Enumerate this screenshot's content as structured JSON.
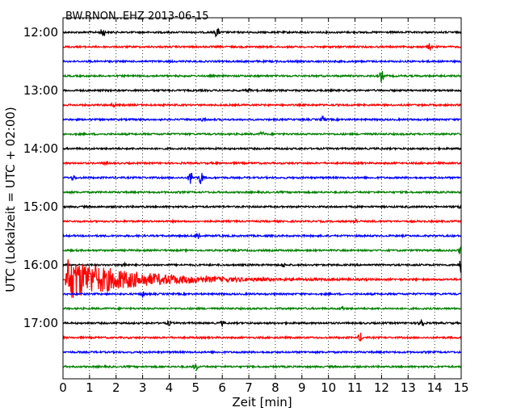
{
  "chart_data": {
    "type": "line",
    "title": "BW.RNON..EHZ 2013-06-15",
    "xlabel": "Zeit  [min]",
    "ylabel": "UTC (Lokalzeit = UTC + 02:00)",
    "xlim": [
      0,
      15
    ],
    "x_ticks": [
      "0",
      "1",
      "2",
      "3",
      "4",
      "5",
      "6",
      "7",
      "8",
      "9",
      "10",
      "11",
      "12",
      "13",
      "14",
      "15"
    ],
    "y_ticks": [
      "12:00",
      "13:00",
      "14:00",
      "15:00",
      "16:00",
      "17:00"
    ],
    "grid": "vertical dotted",
    "trace_interval_minutes": 15,
    "color_cycle": [
      "#000000",
      "#ff0000",
      "#0000ff",
      "#008000"
    ],
    "rows": [
      {
        "start": "12:00",
        "color": "#000000",
        "events": [
          {
            "t": 1.5,
            "amp": 0.7
          },
          {
            "t": 5.8,
            "amp": 0.7
          }
        ]
      },
      {
        "start": "12:15",
        "color": "#ff0000",
        "events": [
          {
            "t": 13.8,
            "amp": 0.4
          }
        ]
      },
      {
        "start": "12:30",
        "color": "#0000ff",
        "events": []
      },
      {
        "start": "12:45",
        "color": "#008000",
        "events": [
          {
            "t": 12.0,
            "amp": 0.8
          }
        ]
      },
      {
        "start": "13:00",
        "color": "#000000",
        "events": [
          {
            "t": 7.0,
            "amp": 0.2
          }
        ]
      },
      {
        "start": "13:15",
        "color": "#ff0000",
        "events": [
          {
            "t": 1.9,
            "amp": 0.3
          }
        ]
      },
      {
        "start": "13:30",
        "color": "#0000ff",
        "events": [
          {
            "t": 5.3,
            "amp": 0.3
          },
          {
            "t": 9.8,
            "amp": 0.4
          }
        ]
      },
      {
        "start": "13:45",
        "color": "#008000",
        "events": [
          {
            "t": 7.5,
            "amp": 0.3
          }
        ]
      },
      {
        "start": "14:00",
        "color": "#000000",
        "events": []
      },
      {
        "start": "14:15",
        "color": "#ff0000",
        "events": [
          {
            "t": 1.6,
            "amp": 0.3
          }
        ]
      },
      {
        "start": "14:30",
        "color": "#0000ff",
        "events": [
          {
            "t": 0.4,
            "amp": 0.3
          },
          {
            "t": 4.8,
            "amp": 1.0
          },
          {
            "t": 5.2,
            "amp": 1.0
          }
        ]
      },
      {
        "start": "14:45",
        "color": "#008000",
        "events": []
      },
      {
        "start": "15:00",
        "color": "#000000",
        "events": [
          {
            "t": 15.0,
            "amp": 0.8
          }
        ]
      },
      {
        "start": "15:15",
        "color": "#ff0000",
        "events": [
          {
            "t": 11.0,
            "amp": 0.4
          }
        ]
      },
      {
        "start": "15:30",
        "color": "#0000ff",
        "events": [
          {
            "t": 5.1,
            "amp": 0.5
          }
        ]
      },
      {
        "start": "15:45",
        "color": "#008000",
        "events": [
          {
            "t": 15.0,
            "amp": 0.8
          }
        ]
      },
      {
        "start": "16:00",
        "color": "#000000",
        "events": [
          {
            "t": 2.3,
            "amp": 0.3
          },
          {
            "t": 8.3,
            "amp": 0.3
          },
          {
            "t": 15.0,
            "amp": 1.0
          }
        ]
      },
      {
        "start": "16:15",
        "color": "#ff0000",
        "events": [
          {
            "t": 0.1,
            "amp": 3.0,
            "coda": 7.0
          }
        ]
      },
      {
        "start": "16:30",
        "color": "#0000ff",
        "events": [
          {
            "t": 3.0,
            "amp": 0.4
          }
        ]
      },
      {
        "start": "16:45",
        "color": "#008000",
        "events": [
          {
            "t": 10.5,
            "amp": 0.3
          }
        ]
      },
      {
        "start": "17:00",
        "color": "#000000",
        "events": [
          {
            "t": 4.0,
            "amp": 0.3
          },
          {
            "t": 6.0,
            "amp": 0.3
          },
          {
            "t": 13.5,
            "amp": 1.0
          }
        ]
      },
      {
        "start": "17:15",
        "color": "#ff0000",
        "events": [
          {
            "t": 11.2,
            "amp": 0.6
          }
        ]
      },
      {
        "start": "17:30",
        "color": "#0000ff",
        "events": []
      },
      {
        "start": "17:45",
        "color": "#008000",
        "events": [
          {
            "t": 5.0,
            "amp": 0.5
          }
        ]
      }
    ]
  }
}
